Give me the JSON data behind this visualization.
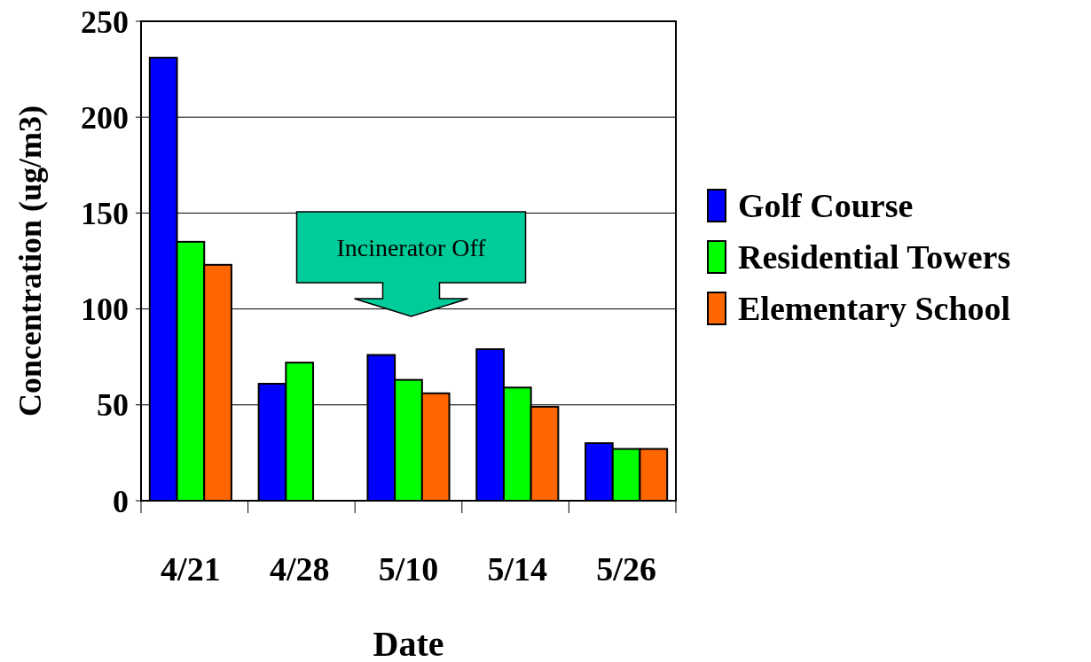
{
  "chart_data": {
    "type": "bar",
    "xlabel": "Date",
    "ylabel": "Concentration (ug/m3)",
    "categories": [
      "4/21",
      "4/28",
      "5/10",
      "5/14",
      "5/26"
    ],
    "series": [
      {
        "name": "Golf Course",
        "color": "#0000ff",
        "values": [
          231,
          61,
          76,
          79,
          30
        ]
      },
      {
        "name": "Residential Towers",
        "color": "#00ff00",
        "values": [
          135,
          72,
          63,
          59,
          27
        ]
      },
      {
        "name": "Elementary School",
        "color": "#ff6600",
        "values": [
          123,
          null,
          56,
          49,
          27
        ]
      }
    ],
    "ylim": [
      0,
      250
    ],
    "yticks": [
      0,
      50,
      100,
      150,
      200,
      250
    ],
    "grid": "y",
    "legend": "right",
    "annotations": [
      "Incinerator Off"
    ]
  }
}
